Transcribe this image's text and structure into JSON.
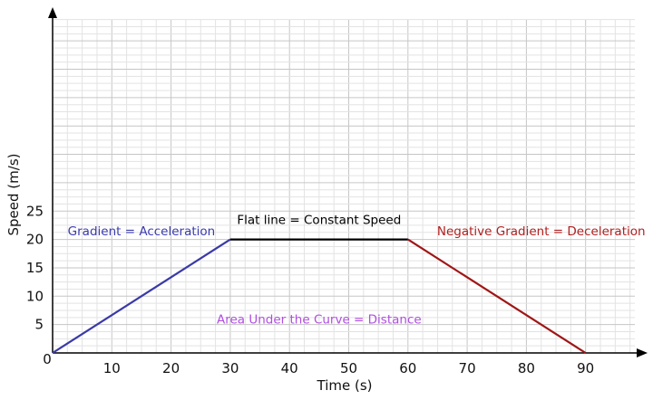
{
  "chart_data": {
    "type": "line",
    "xlabel": "Time (s)",
    "ylabel": "Speed (m/s)",
    "xlim": [
      0,
      100
    ],
    "ylim": [
      0,
      30
    ],
    "x_ticks": [
      10,
      20,
      30,
      40,
      50,
      60,
      70,
      80,
      90
    ],
    "y_ticks": [
      5,
      10,
      15,
      20,
      25
    ],
    "origin_label": "0",
    "grid": "major and minor",
    "series": [
      {
        "x": [
          0,
          30
        ],
        "y": [
          0,
          20
        ],
        "color": "#3a3aa8"
      },
      {
        "x": [
          30,
          60
        ],
        "y": [
          20,
          20
        ],
        "color": "#000000"
      },
      {
        "x": [
          60,
          90
        ],
        "y": [
          20,
          0
        ],
        "color": "#a01616"
      }
    ],
    "annotations": [
      {
        "text": "Gradient = Acceleration",
        "x": 15,
        "y": 21.5,
        "color": "#3a3ab0"
      },
      {
        "text": "Flat line = Constant Speed",
        "x": 45,
        "y": 23.5,
        "color": "#000000"
      },
      {
        "text": "Negative Gradient = Deceleration",
        "x": 82.5,
        "y": 21.5,
        "color": "#b02020"
      },
      {
        "text": "Area Under the Curve = Distance",
        "x": 45,
        "y": 6,
        "color": "#b04ee0"
      }
    ]
  }
}
